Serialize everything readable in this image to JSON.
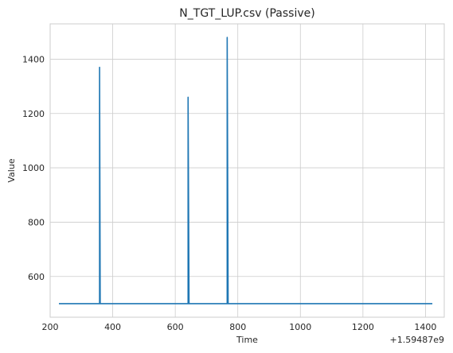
{
  "chart_data": {
    "type": "line",
    "title": "N_TGT_LUP.csv (Passive)",
    "xlabel": "Time",
    "ylabel": "Value",
    "x_offset_label": "+1.59487e9",
    "xlim": [
      200,
      1460
    ],
    "ylim": [
      450,
      1530
    ],
    "xticks": [
      200,
      400,
      600,
      800,
      1000,
      1200,
      1400
    ],
    "yticks": [
      600,
      800,
      1000,
      1200,
      1400
    ],
    "grid": true,
    "series": [
      {
        "color": "#1f77b4",
        "points": [
          [
            228,
            500
          ],
          [
            358,
            500
          ],
          [
            358,
            1370
          ],
          [
            360,
            500
          ],
          [
            641,
            500
          ],
          [
            641,
            1260
          ],
          [
            644,
            500
          ],
          [
            766,
            500
          ],
          [
            766,
            1480
          ],
          [
            769,
            500
          ],
          [
            1422,
            500
          ]
        ]
      }
    ]
  }
}
